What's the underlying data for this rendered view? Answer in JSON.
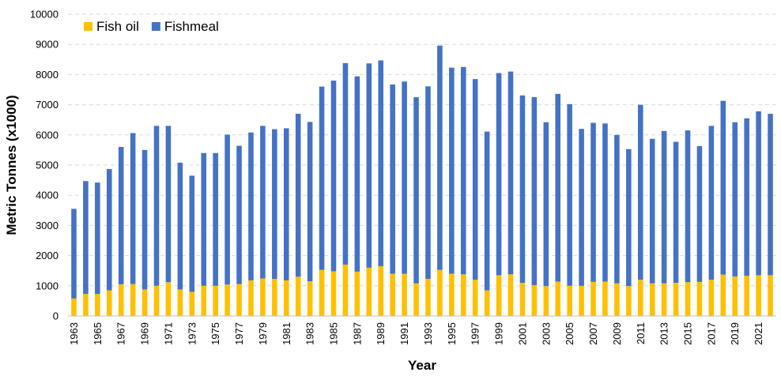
{
  "chart_data": {
    "type": "bar",
    "stacked": true,
    "title": "",
    "xlabel": "Year",
    "ylabel": "Metric Tonnes (x1000)",
    "ylim": [
      0,
      10000
    ],
    "yticks": [
      "0",
      "1000",
      "2000",
      "3000",
      "4000",
      "5000",
      "6000",
      "7000",
      "8000",
      "9000",
      "10000"
    ],
    "grid": "horizontal dashed",
    "legend_position": "top-left",
    "categories": [
      "1963",
      "1964",
      "1965",
      "1966",
      "1967",
      "1968",
      "1969",
      "1970",
      "1971",
      "1972",
      "1973",
      "1974",
      "1975",
      "1976",
      "1977",
      "1978",
      "1979",
      "1980",
      "1981",
      "1982",
      "1983",
      "1984",
      "1985",
      "1986",
      "1987",
      "1988",
      "1989",
      "1990",
      "1991",
      "1992",
      "1993",
      "1994",
      "1995",
      "1996",
      "1997",
      "1998",
      "1999",
      "2000",
      "2001",
      "2002",
      "2003",
      "2004",
      "2005",
      "2006",
      "2007",
      "2008",
      "2009",
      "2010",
      "2011",
      "2012",
      "2013",
      "2014",
      "2015",
      "2016",
      "2017",
      "2018",
      "2019",
      "2020",
      "2021",
      "2022"
    ],
    "x_tick_labels": [
      "1963",
      "1965",
      "1967",
      "1969",
      "1971",
      "1973",
      "1975",
      "1977",
      "1979",
      "1981",
      "1983",
      "1985",
      "1987",
      "1989",
      "1991",
      "1993",
      "1995",
      "1997",
      "1999",
      "2001",
      "2003",
      "2005",
      "2007",
      "2009",
      "2011",
      "2013",
      "2015",
      "2017",
      "2019",
      "2021"
    ],
    "series": [
      {
        "name": "Fish oil",
        "color": "#ffc000",
        "values": [
          580,
          730,
          730,
          850,
          1050,
          1060,
          880,
          1000,
          1120,
          880,
          800,
          1000,
          1000,
          1040,
          1060,
          1180,
          1240,
          1230,
          1180,
          1300,
          1150,
          1530,
          1480,
          1700,
          1470,
          1600,
          1650,
          1400,
          1400,
          1080,
          1230,
          1530,
          1400,
          1380,
          1200,
          850,
          1350,
          1380,
          1100,
          1020,
          990,
          1140,
          1000,
          1000,
          1130,
          1140,
          1080,
          990,
          1200,
          1080,
          1080,
          1100,
          1120,
          1130,
          1200,
          1370,
          1310,
          1330,
          1350,
          1350
        ]
      },
      {
        "name": "Fishmeal",
        "color": "#4472c4",
        "values": [
          2970,
          3740,
          3690,
          4020,
          4550,
          5000,
          4620,
          5300,
          5180,
          4200,
          3850,
          4400,
          4400,
          4970,
          4580,
          4900,
          5060,
          4960,
          5040,
          5400,
          5280,
          6070,
          6320,
          6680,
          6470,
          6770,
          6820,
          6270,
          6370,
          6170,
          6380,
          7430,
          6830,
          6870,
          6650,
          5260,
          6700,
          6720,
          6210,
          6230,
          5430,
          6220,
          6020,
          5200,
          5270,
          5240,
          4920,
          4540,
          5800,
          4790,
          5050,
          4670,
          5030,
          4500,
          5100,
          5760,
          5110,
          5220,
          5430,
          5350
        ]
      }
    ]
  }
}
